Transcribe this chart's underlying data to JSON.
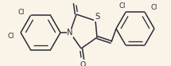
{
  "bg_color": "#faf4e8",
  "bond_color": "#2a2a3a",
  "bond_width": 1.1,
  "font_size": 6.2,
  "figsize": [
    2.15,
    0.83
  ],
  "dpi": 100,
  "xlim": [
    0,
    215
  ],
  "ylim": [
    0,
    83
  ]
}
